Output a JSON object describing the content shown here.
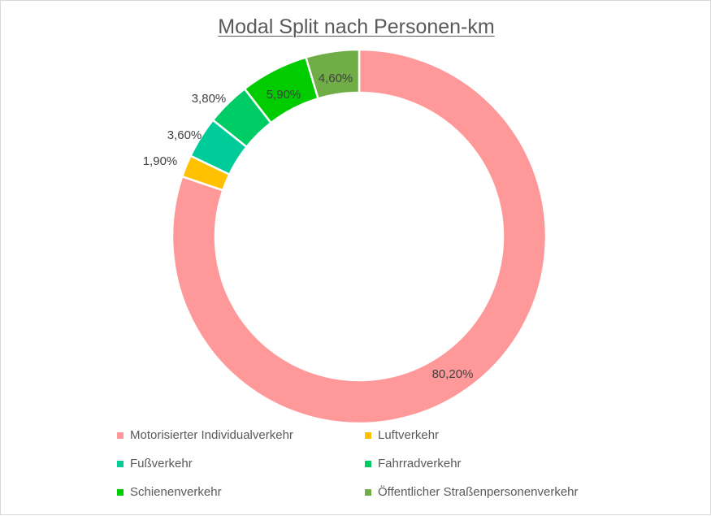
{
  "chart_data": {
    "type": "pie",
    "title": "Modal Split nach Personen-km",
    "categories": [
      "Motorisierter Individualverkehr",
      "Luftverkehr",
      "Fußverkehr",
      "Fahrradverkehr",
      "Schienenverkehr",
      "Öffentlicher Straßenpersonenverkehr"
    ],
    "values": [
      80.2,
      1.9,
      3.6,
      3.8,
      5.9,
      4.6
    ],
    "data_labels": [
      "80,20%",
      "1,90%",
      "3,60%",
      "3,80%",
      "5,90%",
      "4,60%"
    ],
    "colors": [
      "#ff9999",
      "#ffc000",
      "#00cc99",
      "#00cc66",
      "#00cc00",
      "#70ad47"
    ],
    "donut": true,
    "legend_position": "bottom"
  }
}
